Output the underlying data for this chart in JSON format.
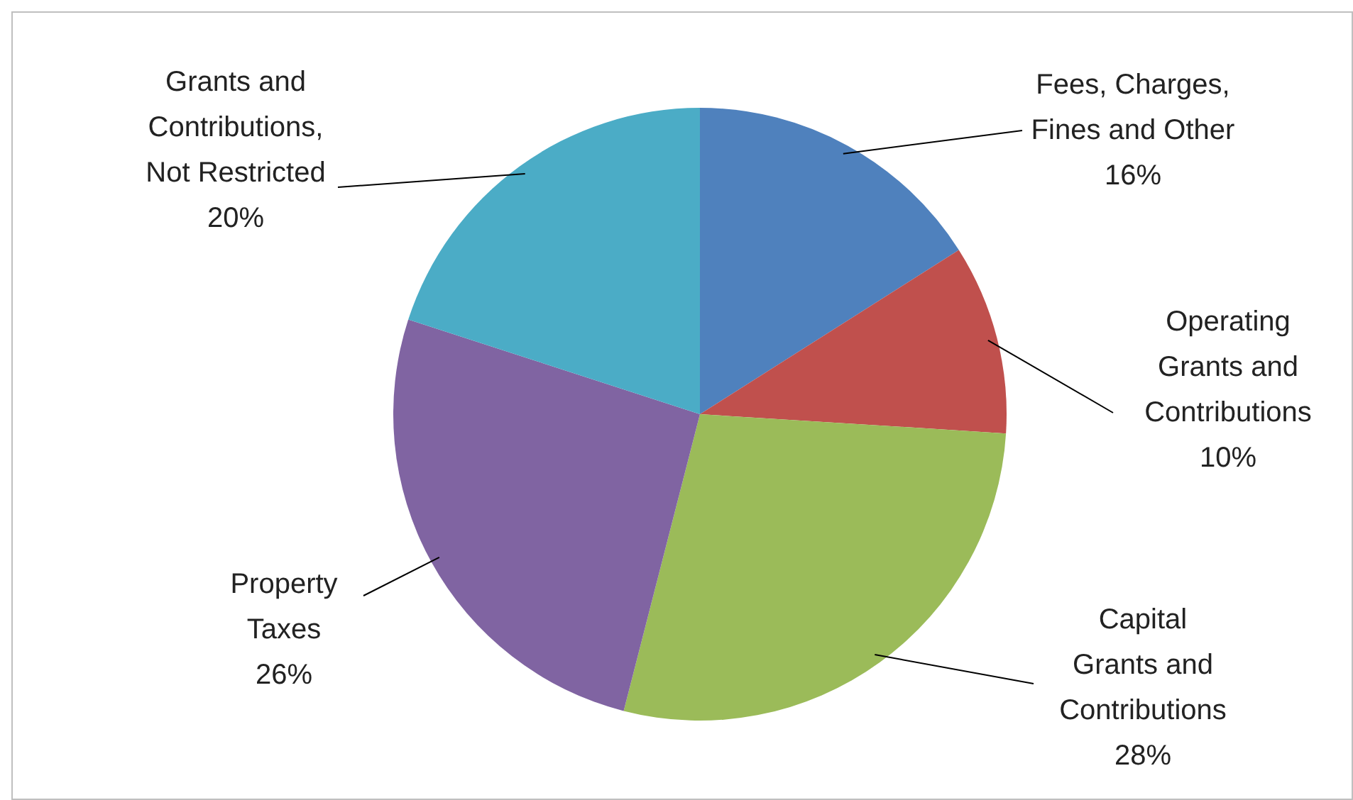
{
  "chart_data": {
    "type": "pie",
    "categories": [
      "Fees, Charges, Fines and Other",
      "Operating Grants and Contributions",
      "Capital Grants and Contributions",
      "Property Taxes",
      "Grants and Contributions, Not Restricted"
    ],
    "values": [
      16,
      10,
      28,
      26,
      20
    ],
    "colors": [
      "#4f81bd",
      "#c0504d",
      "#9bbb59",
      "#8064a2",
      "#4bacc6"
    ],
    "value_labels": [
      "16%",
      "10%",
      "28%",
      "26%",
      "20%"
    ],
    "legend": false
  }
}
